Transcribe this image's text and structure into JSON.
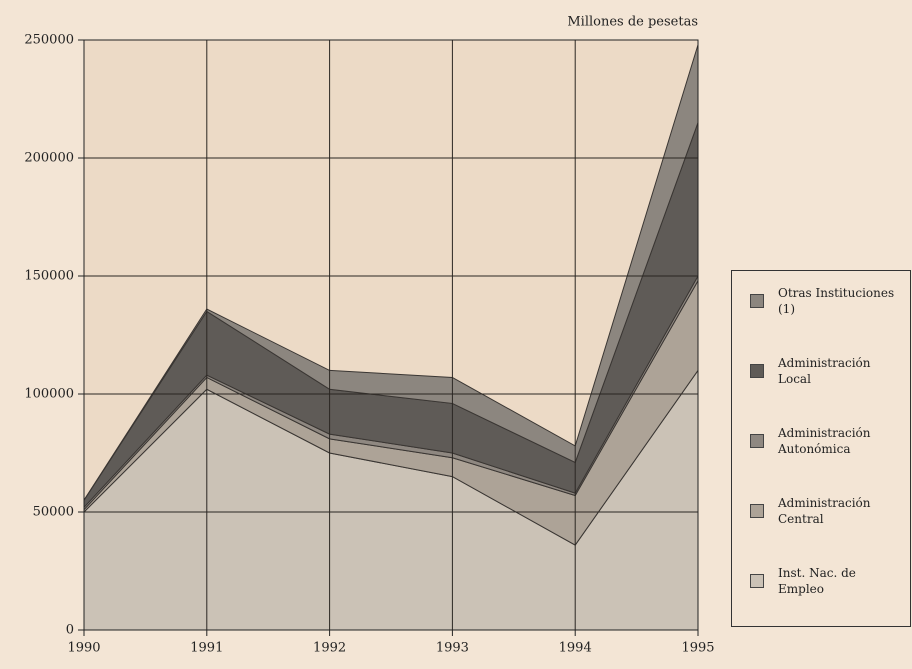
{
  "chart_data": {
    "type": "stacked_area",
    "subtitle": "Millones de pesetas",
    "x": [
      1990,
      1991,
      1992,
      1993,
      1994,
      1995
    ],
    "xlim": [
      1990,
      1995
    ],
    "xticks": [
      1990,
      1991,
      1992,
      1993,
      1994,
      1995
    ],
    "ylim": [
      0,
      250000
    ],
    "yticks": [
      0,
      50000,
      100000,
      150000,
      200000,
      250000
    ],
    "grid": true,
    "legend": "right",
    "series": [
      {
        "name": "Inst. Nac. de Empleo",
        "color": "#cbc2b6",
        "values": [
          50000,
          102000,
          75000,
          65000,
          36000,
          110000
        ]
      },
      {
        "name": "Administración Central",
        "color": "#ada397",
        "values": [
          1000,
          5000,
          6000,
          8000,
          21000,
          38000
        ]
      },
      {
        "name": "Administración Autonómica",
        "color": "#8f8881",
        "values": [
          1000,
          1000,
          2000,
          2000,
          1000,
          2000
        ]
      },
      {
        "name": "Administración Local",
        "color": "#5f5b57",
        "values": [
          3000,
          27000,
          19000,
          21000,
          13000,
          65000
        ]
      },
      {
        "name": "Otras Instituciones (1)",
        "color": "#8c867f",
        "values": [
          0,
          1000,
          8000,
          11000,
          7000,
          33000
        ]
      }
    ]
  }
}
